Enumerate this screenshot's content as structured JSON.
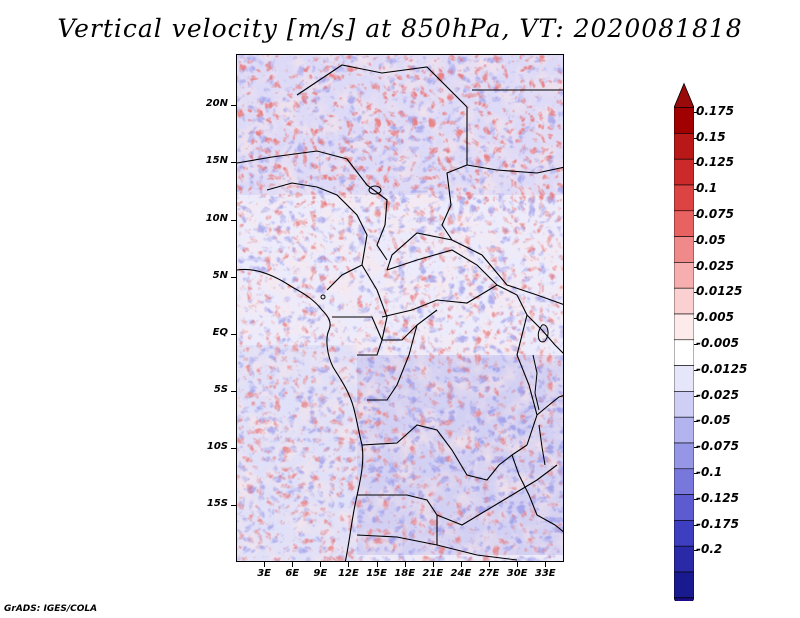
{
  "title": "Vertical velocity [m/s] at 850hPa, VT: 2020081818",
  "credit": "GrADS: IGES/COLA",
  "map": {
    "lat_labels": [
      "20N",
      "15N",
      "10N",
      "5N",
      "EQ",
      "5S",
      "10S",
      "15S"
    ],
    "lat_values": [
      20,
      15,
      10,
      5,
      0,
      -5,
      -10,
      -15
    ],
    "lon_labels": [
      "3E",
      "6E",
      "9E",
      "12E",
      "15E",
      "18E",
      "21E",
      "24E",
      "27E",
      "30E",
      "33E"
    ],
    "lon_values": [
      3,
      6,
      9,
      12,
      15,
      18,
      21,
      24,
      27,
      30,
      33
    ],
    "lat_range": [
      -20,
      24.5
    ],
    "lon_range": [
      0,
      35
    ]
  },
  "colorbar": {
    "labels": [
      "0.175",
      "0.15",
      "0.125",
      "0.1",
      "0.075",
      "0.05",
      "0.025",
      "0.0125",
      "0.005",
      "-0.005",
      "-0.0125",
      "-0.025",
      "-0.05",
      "-0.075",
      "-0.1",
      "-0.125",
      "-0.175",
      "-0.2"
    ],
    "colors": [
      "#a00000",
      "#b81818",
      "#cc2a2a",
      "#dc4444",
      "#e86262",
      "#f08a8a",
      "#f6aeae",
      "#fbd0d0",
      "#fdeaea",
      "#ffffff",
      "#e6e6fb",
      "#cfcff6",
      "#b3b3ef",
      "#9696e6",
      "#7878dc",
      "#5c5cd0",
      "#3e3ec0",
      "#2a2aa8",
      "#1a1a90"
    ],
    "top_arrow_color": "#9a0a0a",
    "bottom_arrow_color": "#1c0c8c"
  }
}
